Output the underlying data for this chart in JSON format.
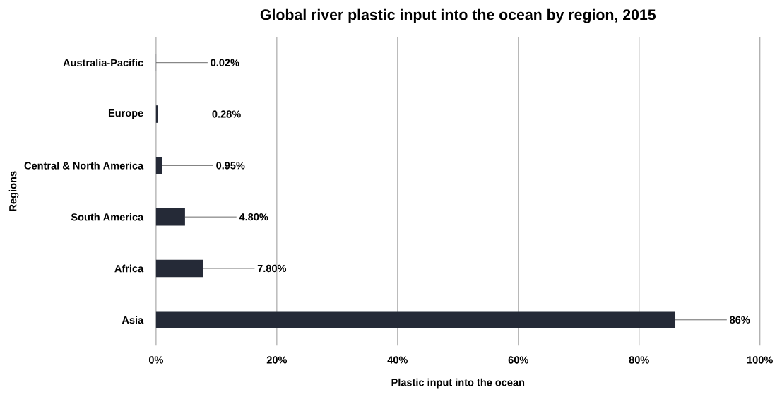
{
  "chart_data": {
    "type": "bar",
    "orientation": "horizontal",
    "title": "Global river plastic input into the ocean by region, 2015",
    "xlabel": "Plastic input into the ocean",
    "ylabel": "Regions",
    "categories": [
      "Australia-Pacific",
      "Europe",
      "Central & North America",
      "South America",
      "Africa",
      "Asia"
    ],
    "values": [
      0.02,
      0.28,
      0.95,
      4.8,
      7.8,
      86
    ],
    "value_labels": [
      "0.02%",
      "0.28%",
      "0.95%",
      "4.80%",
      "7.80%",
      "86%"
    ],
    "color": "#252a37",
    "xlim": [
      0,
      100
    ],
    "xticks": [
      {
        "value": 0,
        "label": "0%"
      },
      {
        "value": 20,
        "label": "20%"
      },
      {
        "value": 40,
        "label": "40%"
      },
      {
        "value": 60,
        "label": "60%"
      },
      {
        "value": 80,
        "label": "80%"
      },
      {
        "value": 100,
        "label": "100%"
      }
    ],
    "grid": "x"
  }
}
